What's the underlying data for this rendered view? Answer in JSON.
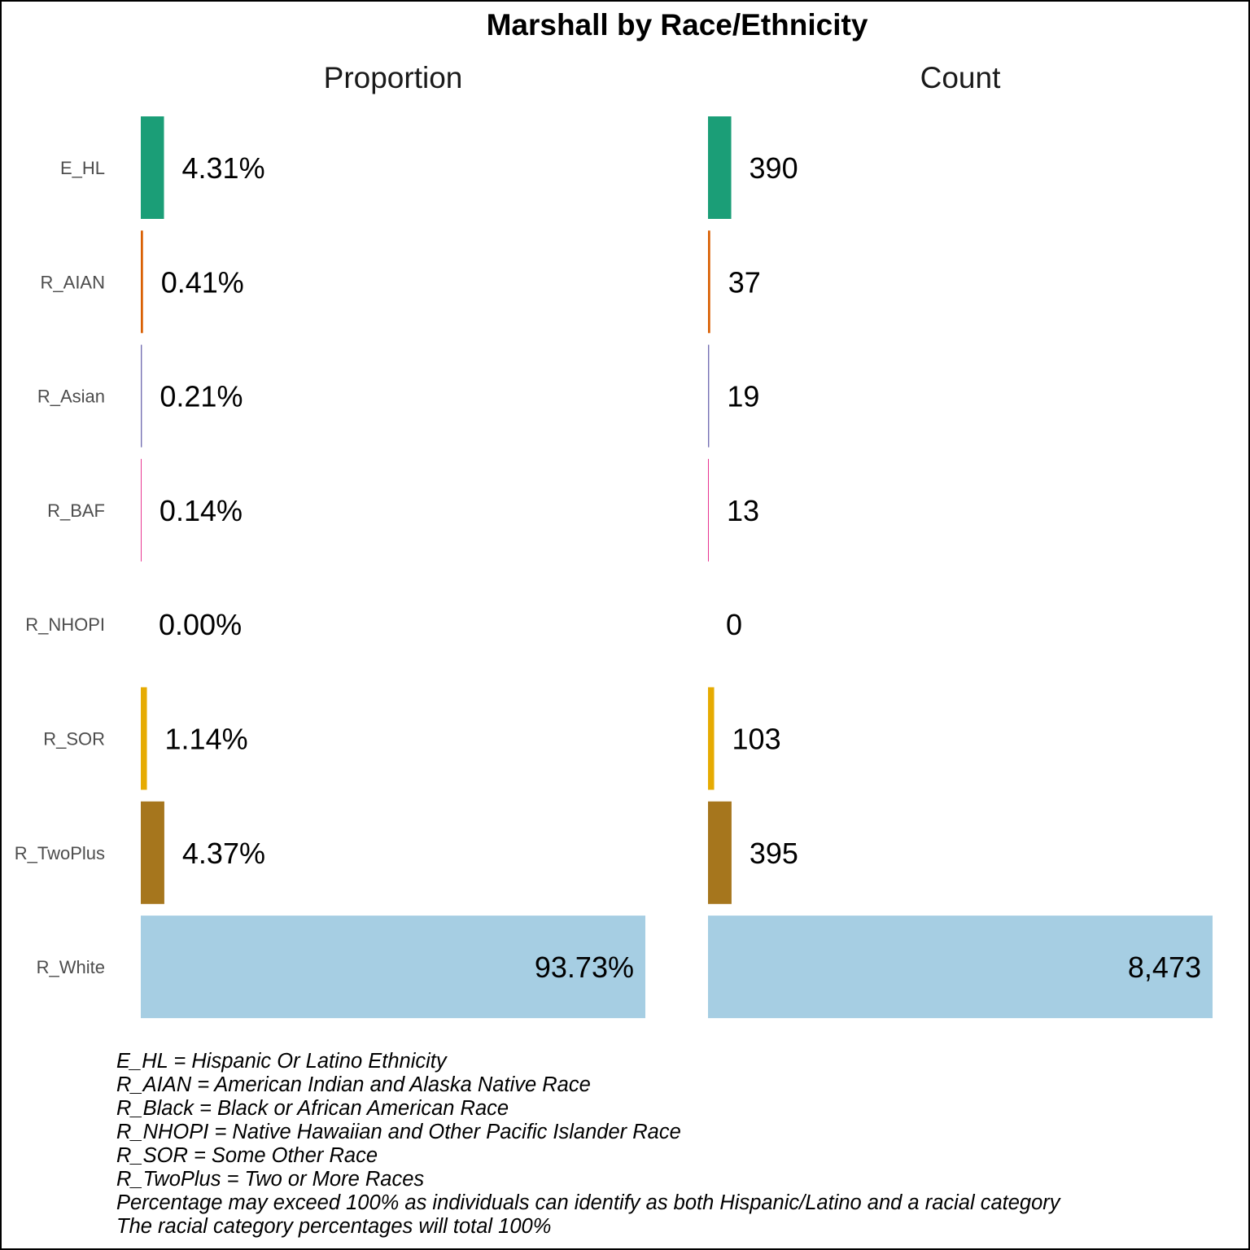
{
  "chart_data": {
    "type": "bar",
    "orientation": "horizontal",
    "title": "Marshall by Race/Ethnicity",
    "categories": [
      "E_HL",
      "R_AIAN",
      "R_Asian",
      "R_BAF",
      "R_NHOPI",
      "R_SOR",
      "R_TwoPlus",
      "R_White"
    ],
    "colors": [
      "#1b9e77",
      "#d95f02",
      "#7570b3",
      "#e7298a",
      "#66a61e",
      "#e6ab02",
      "#a6761d",
      "#a6cee3"
    ],
    "panels": [
      {
        "name": "Proportion",
        "values": [
          4.31,
          0.41,
          0.21,
          0.14,
          0.0,
          1.14,
          4.37,
          93.73
        ],
        "labels": [
          "4.31%",
          "0.41%",
          "0.21%",
          "0.14%",
          "0.00%",
          "1.14%",
          "4.37%",
          "93.73%"
        ],
        "xlim": [
          0,
          93.73
        ]
      },
      {
        "name": "Count",
        "values": [
          390,
          37,
          19,
          13,
          0,
          103,
          395,
          8473
        ],
        "labels": [
          "390",
          "37",
          "19",
          "13",
          "0",
          "103",
          "395",
          "8,473"
        ],
        "xlim": [
          0,
          8473
        ]
      }
    ],
    "grid": false,
    "legend": "none"
  },
  "notes": [
    "E_HL = Hispanic Or Latino Ethnicity",
    "R_AIAN = American Indian and Alaska Native Race",
    "R_Black = Black or African American Race",
    "R_NHOPI = Native Hawaiian and Other Pacific Islander Race",
    "R_SOR = Some Other Race",
    "R_TwoPlus = Two or More Races",
    "Percentage may exceed 100% as individuals can identify as both Hispanic/Latino and a racial category",
    "The racial category percentages will total 100%"
  ]
}
